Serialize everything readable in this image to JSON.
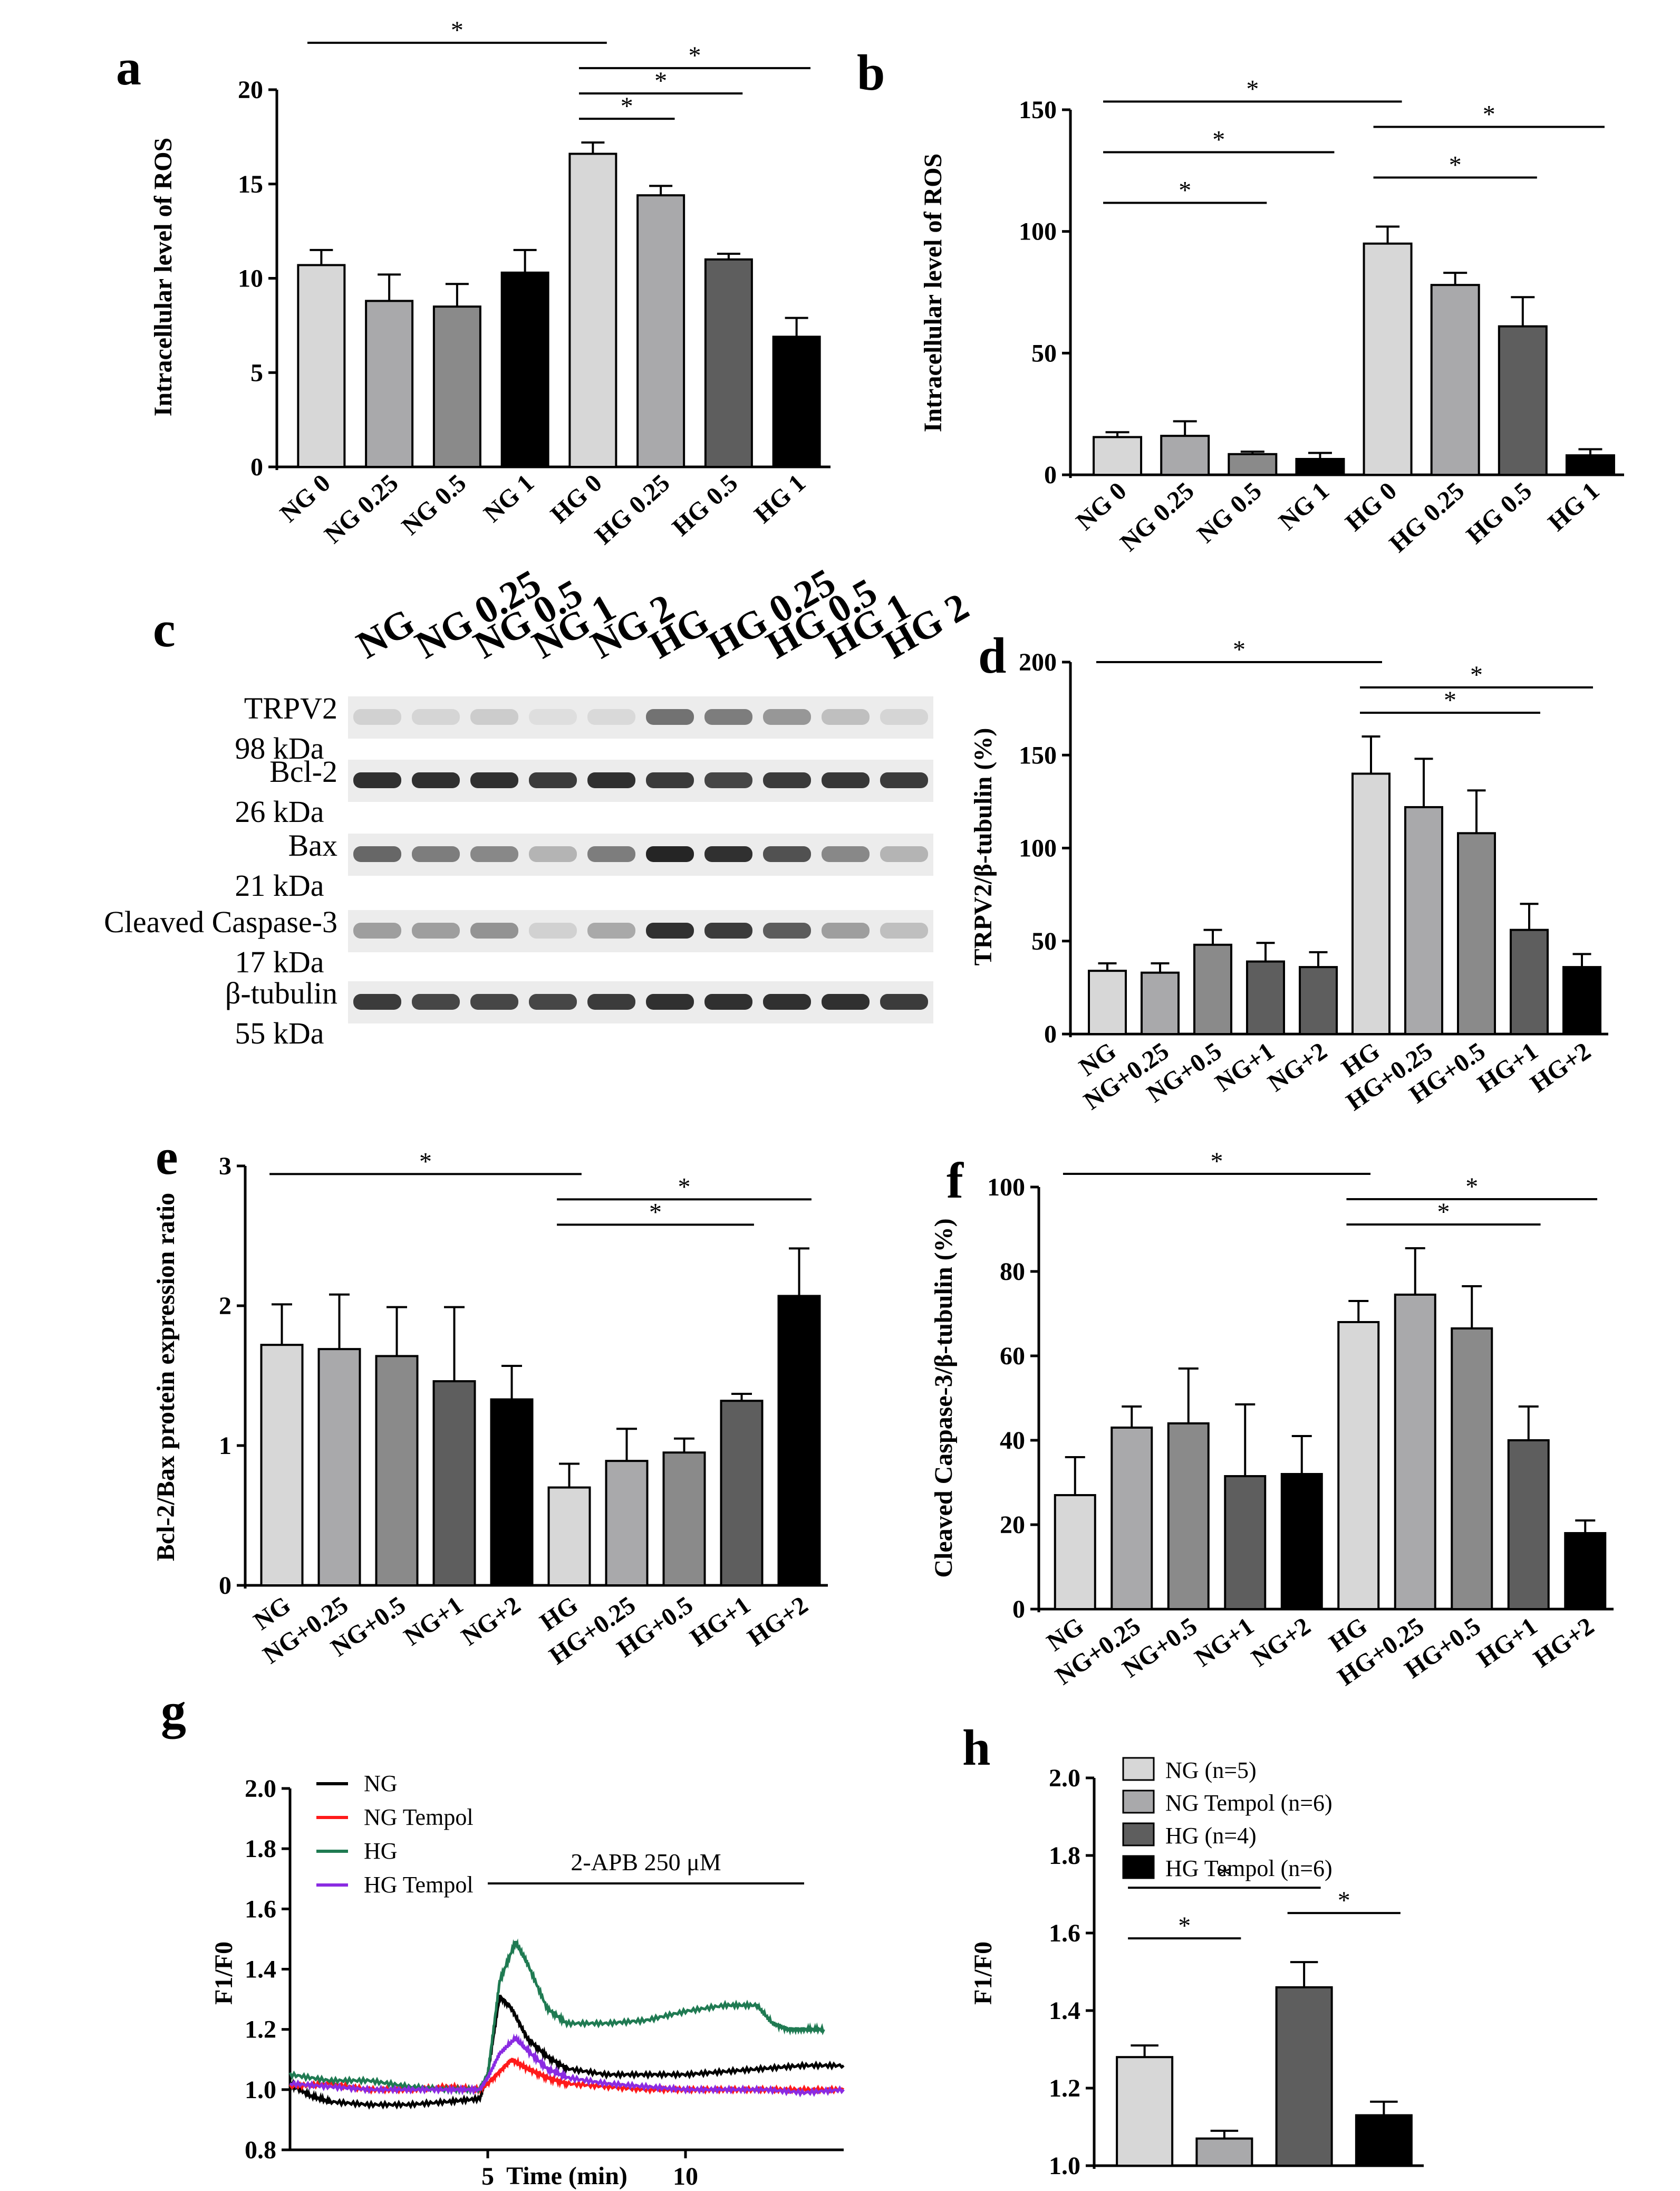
{
  "colors": {
    "g0": "#d7d7d7",
    "g1": "#a9a9ab",
    "g2": "#8a8a8a",
    "g3": "#5e5e5e",
    "g4": "#000000",
    "NG": "#000000",
    "NG Tempol": "#ff1a1a",
    "HG": "#1f7a52",
    "HG Tempol": "#8a2be2"
  },
  "panels": {
    "a": "a",
    "b": "b",
    "c": "c",
    "d": "d",
    "e": "e",
    "f": "f",
    "g": "g",
    "h": "h"
  },
  "chart_data": [
    {
      "id": "a",
      "type": "bar",
      "categories": [
        "NG 0",
        "NG 0.25",
        "NG 0.5",
        "NG 1",
        "HG 0",
        "HG 0.25",
        "HG 0.5",
        "HG 1"
      ],
      "values": [
        10.7,
        8.8,
        8.5,
        10.3,
        16.6,
        14.4,
        11.0,
        6.9
      ],
      "errors": [
        0.8,
        1.4,
        1.2,
        1.2,
        0.6,
        0.5,
        0.3,
        1.0
      ],
      "colors": [
        "g0",
        "g1",
        "g2",
        "g4",
        "g0",
        "g1",
        "g3",
        "g4"
      ],
      "ylabel": "Intracellular level of ROS",
      "ylim": [
        0,
        20
      ],
      "yticks": [
        "0",
        "5",
        "10",
        "15",
        "20"
      ],
      "signif": [
        {
          "from": 0,
          "to": 4,
          "label": "*"
        },
        {
          "from": 4,
          "to": 5,
          "label": "*"
        },
        {
          "from": 4,
          "to": 6,
          "label": "*"
        },
        {
          "from": 4,
          "to": 7,
          "label": "*"
        }
      ]
    },
    {
      "id": "b",
      "type": "bar",
      "categories": [
        "NG 0",
        "NG 0.25",
        "NG 0.5",
        "NG 1",
        "HG 0",
        "HG 0.25",
        "HG 0.5",
        "HG 1"
      ],
      "values": [
        15.5,
        16.0,
        8.5,
        6.5,
        95.0,
        78.0,
        61.0,
        8.0
      ],
      "errors": [
        2.0,
        6.0,
        1.0,
        2.5,
        7.0,
        5.0,
        12.0,
        2.5
      ],
      "colors": [
        "g0",
        "g1",
        "g2",
        "g4",
        "g0",
        "g1",
        "g3",
        "g4"
      ],
      "ylabel": "Intracellular level of ROS",
      "ylim": [
        0,
        150
      ],
      "yticks": [
        "0",
        "50",
        "100",
        "150"
      ],
      "signif": [
        {
          "from": 0,
          "to": 2,
          "label": "*"
        },
        {
          "from": 0,
          "to": 3,
          "label": "*"
        },
        {
          "from": 0,
          "to": 4,
          "label": "*"
        },
        {
          "from": 4,
          "to": 6,
          "label": "*"
        },
        {
          "from": 4,
          "to": 7,
          "label": "*"
        }
      ]
    },
    {
      "id": "d",
      "type": "bar",
      "categories": [
        "NG",
        "NG+0.25",
        "NG+0.5",
        "NG+1",
        "NG+2",
        "HG",
        "HG+0.25",
        "HG+0.5",
        "HG+1",
        "HG+2"
      ],
      "values": [
        34,
        33,
        48,
        39,
        36,
        140,
        122,
        108,
        56,
        36
      ],
      "errors": [
        4,
        5,
        8,
        10,
        8,
        20,
        26,
        23,
        14,
        7
      ],
      "colors": [
        "g0",
        "g1",
        "g2",
        "g3",
        "g3",
        "g0",
        "g1",
        "g2",
        "g3",
        "g4"
      ],
      "ylabel": "TRPV2/β-tubulin (%)",
      "ylim": [
        0,
        200
      ],
      "yticks": [
        "0",
        "50",
        "100",
        "150",
        "200"
      ],
      "signif": [
        {
          "from": 0,
          "to": 5,
          "label": "*"
        },
        {
          "from": 5,
          "to": 8,
          "label": "*"
        },
        {
          "from": 5,
          "to": 9,
          "label": "*"
        }
      ]
    },
    {
      "id": "e",
      "type": "bar",
      "categories": [
        "NG",
        "NG+0.25",
        "NG+0.5",
        "NG+1",
        "NG+2",
        "HG",
        "HG+0.25",
        "HG+0.5",
        "HG+1",
        "HG+2"
      ],
      "values": [
        1.72,
        1.69,
        1.64,
        1.46,
        1.33,
        0.7,
        0.89,
        0.95,
        1.32,
        2.07
      ],
      "errors": [
        0.29,
        0.39,
        0.35,
        0.53,
        0.24,
        0.17,
        0.23,
        0.1,
        0.05,
        0.34
      ],
      "colors": [
        "g0",
        "g1",
        "g2",
        "g3",
        "g4",
        "g0",
        "g1",
        "g2",
        "g3",
        "g4"
      ],
      "ylabel": "Bcl-2/Bax protein expression ratio",
      "ylim": [
        0,
        3
      ],
      "yticks": [
        "0",
        "1",
        "2",
        "3"
      ],
      "signif": [
        {
          "from": 0,
          "to": 5,
          "label": "*"
        },
        {
          "from": 5,
          "to": 8,
          "label": "*"
        },
        {
          "from": 5,
          "to": 9,
          "label": "*"
        }
      ]
    },
    {
      "id": "f",
      "type": "bar",
      "categories": [
        "NG",
        "NG+0.25",
        "NG+0.5",
        "NG+1",
        "NG+2",
        "HG",
        "HG+0.25",
        "HG+0.5",
        "HG+1",
        "HG+2"
      ],
      "values": [
        27,
        43,
        44,
        31.5,
        32,
        68,
        74.5,
        66.5,
        40,
        18
      ],
      "errors": [
        9,
        5,
        13,
        17,
        9,
        5,
        11,
        10,
        8,
        3
      ],
      "colors": [
        "g0",
        "g1",
        "g2",
        "g3",
        "g4",
        "g0",
        "g1",
        "g2",
        "g3",
        "g4"
      ],
      "ylabel": "Cleaved Caspase-3/β-tubulin (%)",
      "ylim": [
        0,
        100
      ],
      "yticks": [
        "0",
        "20",
        "40",
        "60",
        "80",
        "100"
      ],
      "signif": [
        {
          "from": 0,
          "to": 5,
          "label": "*"
        },
        {
          "from": 5,
          "to": 8,
          "label": "*"
        },
        {
          "from": 5,
          "to": 9,
          "label": "*"
        }
      ]
    },
    {
      "id": "g",
      "type": "line",
      "xlabel": "Time (min)",
      "ylabel": "F1/F0",
      "xlim": [
        0,
        14
      ],
      "ylim": [
        0.8,
        2.0
      ],
      "xticks": [
        "5",
        "10"
      ],
      "yticks": [
        "0.8",
        "1.0",
        "1.2",
        "1.4",
        "1.6",
        "1.8",
        "2.0"
      ],
      "annotation": {
        "text": "2-APB 250 μM",
        "x_start": 5,
        "x_end": 13
      },
      "series": [
        {
          "name": "NG",
          "color": "NG",
          "x": [
            0,
            0.5,
            1,
            2,
            3,
            4,
            4.8,
            5.0,
            5.3,
            5.6,
            6,
            6.5,
            7,
            8,
            9,
            10,
            11,
            12,
            13,
            14
          ],
          "y": [
            1.02,
            0.98,
            0.96,
            0.95,
            0.95,
            0.96,
            0.97,
            1.05,
            1.31,
            1.27,
            1.17,
            1.11,
            1.07,
            1.05,
            1.05,
            1.05,
            1.06,
            1.07,
            1.08,
            1.08
          ]
        },
        {
          "name": "NG Tempol",
          "color": "NG Tempol",
          "x": [
            0,
            1,
            2,
            3,
            4,
            4.8,
            5.0,
            5.3,
            5.6,
            6,
            6.5,
            7,
            8,
            9,
            10,
            11,
            12,
            13,
            14
          ],
          "y": [
            1.01,
            1.02,
            1.0,
            1.0,
            1.01,
            1.0,
            1.02,
            1.06,
            1.1,
            1.07,
            1.04,
            1.02,
            1.01,
            1.0,
            1.0,
            1.0,
            1.0,
            1.0,
            1.0
          ]
        },
        {
          "name": "HG",
          "color": "HG",
          "x": [
            0,
            1,
            2,
            3,
            4,
            4.8,
            5.0,
            5.3,
            5.7,
            6,
            6.5,
            7,
            8,
            9,
            10,
            11,
            11.8,
            12.2,
            12.6,
            13,
            13.5
          ],
          "y": [
            1.05,
            1.03,
            1.03,
            1.01,
            1.0,
            1.0,
            1.05,
            1.36,
            1.49,
            1.42,
            1.27,
            1.22,
            1.22,
            1.23,
            1.26,
            1.28,
            1.28,
            1.22,
            1.2,
            1.2,
            1.2
          ]
        },
        {
          "name": "HG Tempol",
          "color": "HG Tempol",
          "x": [
            0,
            1,
            2,
            3,
            4,
            4.8,
            5.0,
            5.3,
            5.7,
            6,
            6.5,
            7,
            8,
            9,
            10,
            11,
            12,
            13,
            14
          ],
          "y": [
            1.02,
            1.01,
            1.0,
            1.0,
            1.0,
            1.0,
            1.04,
            1.12,
            1.17,
            1.13,
            1.07,
            1.04,
            1.02,
            1.01,
            1.0,
            1.0,
            1.0,
            0.99,
            1.0
          ]
        }
      ]
    },
    {
      "id": "h",
      "type": "bar",
      "categories": [
        "NG (n=5)",
        "NG Tempol (n=6)",
        "HG (n=4)",
        "HG Tempol (n=6)"
      ],
      "values": [
        1.28,
        1.07,
        1.46,
        1.13
      ],
      "errors": [
        0.03,
        0.02,
        0.065,
        0.035
      ],
      "colors": [
        "g0",
        "g1",
        "g3",
        "g4"
      ],
      "ylabel": "F1/F0",
      "ylim": [
        1.0,
        2.0
      ],
      "yticks": [
        "1.0",
        "1.2",
        "1.4",
        "1.6",
        "1.8",
        "2.0"
      ],
      "signif": [
        {
          "from": 0,
          "to": 1,
          "label": "*"
        },
        {
          "from": 0,
          "to": 2,
          "label": "*"
        },
        {
          "from": 2,
          "to": 3,
          "label": "*"
        }
      ]
    }
  ],
  "blot": {
    "lanes": [
      "NG",
      "NG 0.25",
      "NG 0.5",
      "NG 1",
      "NG 2",
      "HG",
      "HG 0.25",
      "HG 0.5",
      "HG 1",
      "HG 2"
    ],
    "labels": [
      {
        "name": "TRPV2",
        "kda": "98 kDa",
        "intensity": [
          0.12,
          0.1,
          0.14,
          0.06,
          0.08,
          0.55,
          0.5,
          0.38,
          0.2,
          0.1
        ]
      },
      {
        "name": "Bcl-2",
        "kda": "26 kDa",
        "intensity": [
          0.85,
          0.85,
          0.85,
          0.8,
          0.85,
          0.8,
          0.75,
          0.8,
          0.82,
          0.8
        ]
      },
      {
        "name": "Bax",
        "kda": "21 kDa",
        "intensity": [
          0.6,
          0.5,
          0.45,
          0.25,
          0.5,
          0.9,
          0.85,
          0.7,
          0.45,
          0.25
        ]
      },
      {
        "name": "Cleaved Caspase-3",
        "kda": "17 kDa",
        "intensity": [
          0.35,
          0.35,
          0.4,
          0.12,
          0.3,
          0.85,
          0.8,
          0.65,
          0.35,
          0.2
        ]
      },
      {
        "name": "β-tubulin",
        "kda": "55 kDa",
        "intensity": [
          0.8,
          0.75,
          0.75,
          0.75,
          0.8,
          0.85,
          0.85,
          0.85,
          0.85,
          0.8
        ]
      }
    ]
  }
}
